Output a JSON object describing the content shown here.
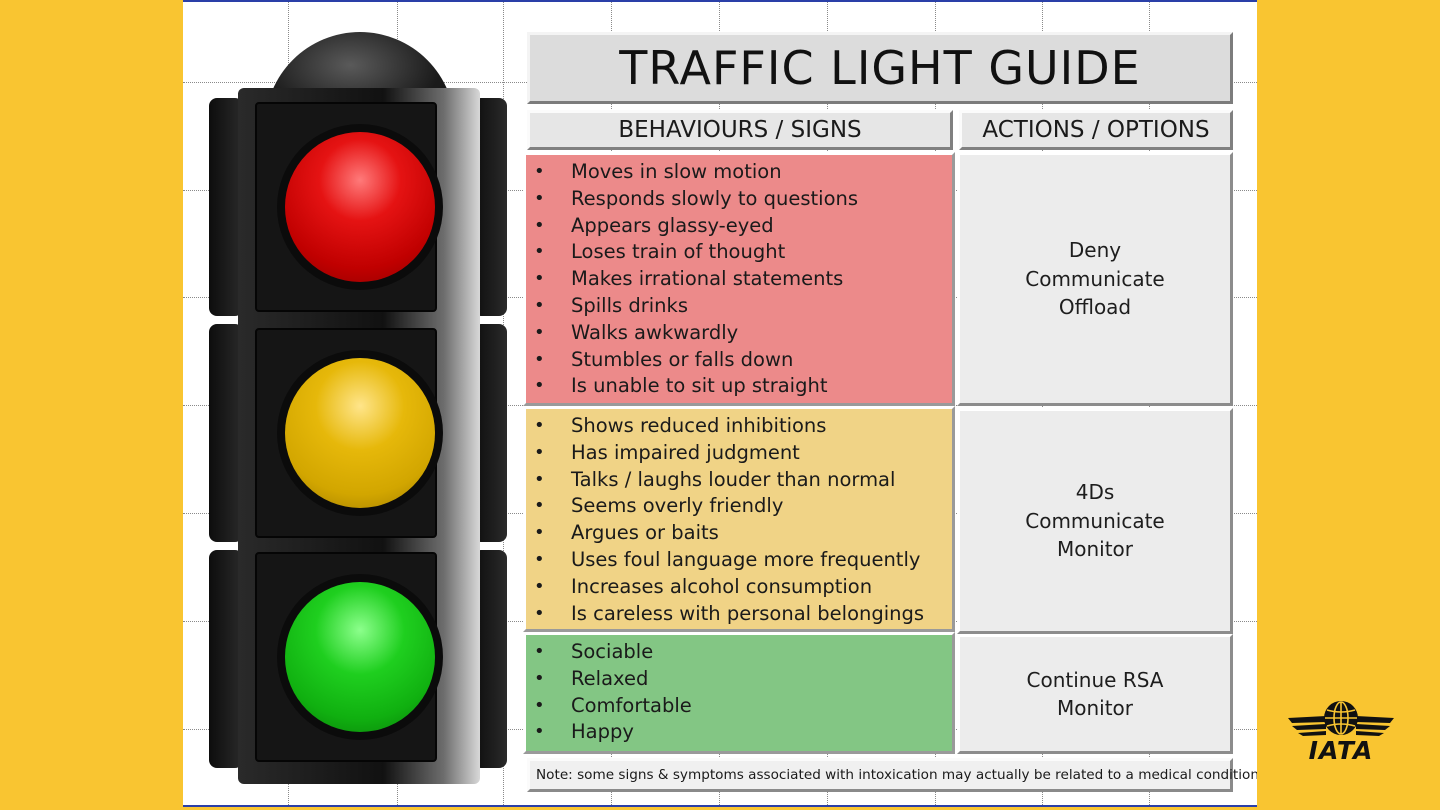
{
  "title": "TRAFFIC LIGHT GUIDE",
  "headers": {
    "behaviours": "BEHAVIOURS / SIGNS",
    "actions": "ACTIONS / OPTIONS"
  },
  "sections": {
    "red": {
      "color": "#ec8a8a",
      "behaviours": [
        "Moves in slow motion",
        "Responds slowly to questions",
        "Appears glassy-eyed",
        "Loses train of thought",
        "Makes irrational statements",
        "Spills drinks",
        "Walks awkwardly",
        "Stumbles or falls down",
        "Is unable to sit up straight"
      ],
      "actions": [
        "Deny",
        "Communicate",
        "Offload"
      ]
    },
    "yellow": {
      "color": "#f0d386",
      "behaviours": [
        "Shows reduced inhibitions",
        "Has impaired judgment",
        "Talks / laughs louder than normal",
        "Seems overly friendly",
        "Argues or baits",
        "Uses foul language more frequently",
        "Increases alcohol consumption",
        "Is careless with personal belongings"
      ],
      "actions": [
        "4Ds",
        "Communicate",
        "Monitor"
      ]
    },
    "green": {
      "color": "#83c684",
      "behaviours": [
        "Sociable",
        "Relaxed",
        "Comfortable",
        "Happy"
      ],
      "actions": [
        "Continue RSA",
        "Monitor"
      ]
    }
  },
  "note": "Note: some signs & symptoms associated with intoxication may actually be related to a medical condition",
  "logo": {
    "text": "IATA",
    "icon": "iata-globe-wings-icon"
  },
  "colors": {
    "background": "#f9c531",
    "slide_border": "#2a3fa8"
  }
}
